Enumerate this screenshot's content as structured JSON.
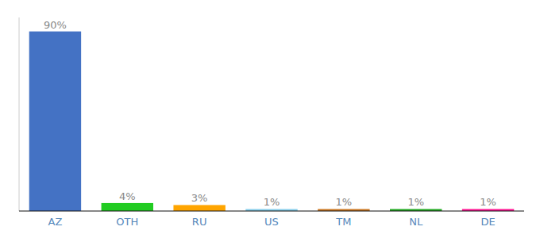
{
  "chart_data": {
    "type": "bar",
    "categories": [
      "AZ",
      "OTH",
      "RU",
      "US",
      "TM",
      "NL",
      "DE"
    ],
    "values": [
      90,
      4,
      3,
      1,
      1,
      1,
      1
    ],
    "value_labels": [
      "90%",
      "4%",
      "3%",
      "1%",
      "1%",
      "1%",
      "1%"
    ],
    "colors": [
      "#4472C4",
      "#22CC22",
      "#FFA500",
      "#87CEEB",
      "#CC7722",
      "#22AA22",
      "#FF1493"
    ],
    "ylim": [
      0,
      97
    ],
    "tick_labels": "x",
    "grid": false
  }
}
